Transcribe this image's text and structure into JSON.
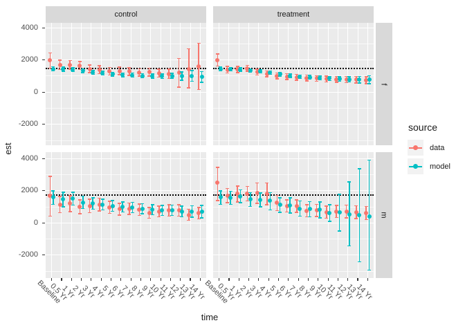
{
  "figure": {
    "colors": {
      "panel_bg": "#EBEBEB",
      "strip_bg": "#D9D9D9",
      "grid": "#FFFFFF",
      "axis_text": "#4D4D4D",
      "text": "#1A1A1A",
      "tick": "#333333",
      "legend_key_bg": "#F2F2F2",
      "ref_line": "#000000"
    }
  },
  "chart_data": {
    "type": "pointrange-errorbar",
    "xlabel": "time",
    "ylabel": "est",
    "col_facets": [
      "control",
      "treatment"
    ],
    "row_facets": [
      "f",
      "m"
    ],
    "x_categories": [
      "Baseline",
      "0.5 Yr",
      "1 Yr",
      "2 Yr",
      "3 Yr",
      "4 Yr",
      "5 Yr",
      "6 Yr",
      "7 Yr",
      "8 Yr",
      "9 Yr",
      "10 Yr",
      "11 Yr",
      "12 Yr",
      "13 Yr",
      "14 Yr"
    ],
    "y_ticks": [
      4000,
      2000,
      0,
      -2000
    ],
    "ylim": {
      "f": [
        -3300,
        4310
      ],
      "m": [
        -3430,
        4420
      ]
    },
    "grid": true,
    "reference_lines": {
      "f": 1470,
      "m": 1720
    },
    "legend": {
      "title": "source",
      "position": "right",
      "items": [
        {
          "label": "data",
          "color": "#F8766D"
        },
        {
          "label": "model",
          "color": "#00BFC4"
        }
      ]
    },
    "point_format": [
      "est",
      "lo",
      "hi"
    ],
    "panels": [
      {
        "col": "control",
        "row": "f",
        "data": [
          [
            2000,
            1500,
            2430
          ],
          [
            1690,
            1400,
            1990
          ],
          [
            1700,
            1440,
            1960
          ],
          [
            1650,
            1400,
            1900
          ],
          [
            1450,
            1210,
            1690
          ],
          [
            1400,
            1160,
            1640
          ],
          [
            1300,
            1070,
            1530
          ],
          [
            1320,
            1090,
            1550
          ],
          [
            1280,
            1050,
            1510
          ],
          [
            1220,
            990,
            1450
          ],
          [
            1250,
            1010,
            1490
          ],
          [
            1180,
            940,
            1420
          ],
          [
            1130,
            840,
            1420
          ],
          [
            1200,
            310,
            2090
          ],
          [
            1450,
            260,
            2700
          ],
          [
            1600,
            160,
            3050
          ]
        ],
        "model": [
          [
            1450,
            1330,
            1570
          ],
          [
            1430,
            1310,
            1550
          ],
          [
            1390,
            1270,
            1510
          ],
          [
            1340,
            1220,
            1460
          ],
          [
            1230,
            1110,
            1350
          ],
          [
            1180,
            1060,
            1300
          ],
          [
            1120,
            1000,
            1240
          ],
          [
            1080,
            960,
            1200
          ],
          [
            1060,
            930,
            1190
          ],
          [
            1020,
            890,
            1150
          ],
          [
            1000,
            870,
            1130
          ],
          [
            980,
            840,
            1120
          ],
          [
            1020,
            860,
            1180
          ],
          [
            1000,
            740,
            1260
          ],
          [
            1010,
            670,
            1350
          ],
          [
            950,
            620,
            1280
          ]
        ]
      },
      {
        "col": "treatment",
        "row": "f",
        "data": [
          [
            2000,
            1620,
            2370
          ],
          [
            1400,
            1200,
            1600
          ],
          [
            1410,
            1220,
            1600
          ],
          [
            1480,
            1290,
            1670
          ],
          [
            1250,
            1060,
            1440
          ],
          [
            1140,
            950,
            1330
          ],
          [
            1010,
            830,
            1190
          ],
          [
            970,
            790,
            1150
          ],
          [
            920,
            740,
            1100
          ],
          [
            880,
            700,
            1060
          ],
          [
            850,
            670,
            1030
          ],
          [
            820,
            640,
            1000
          ],
          [
            800,
            620,
            980
          ],
          [
            780,
            590,
            970
          ],
          [
            770,
            570,
            970
          ],
          [
            740,
            530,
            950
          ]
        ],
        "model": [
          [
            1440,
            1330,
            1550
          ],
          [
            1430,
            1320,
            1540
          ],
          [
            1400,
            1290,
            1510
          ],
          [
            1350,
            1240,
            1460
          ],
          [
            1300,
            1190,
            1410
          ],
          [
            1210,
            1100,
            1320
          ],
          [
            1110,
            1000,
            1220
          ],
          [
            1020,
            910,
            1130
          ],
          [
            960,
            850,
            1070
          ],
          [
            920,
            800,
            1040
          ],
          [
            880,
            760,
            1000
          ],
          [
            850,
            720,
            980
          ],
          [
            820,
            680,
            960
          ],
          [
            800,
            640,
            960
          ],
          [
            780,
            580,
            980
          ],
          [
            770,
            520,
            1020
          ]
        ]
      },
      {
        "col": "control",
        "row": "m",
        "data": [
          [
            1670,
            430,
            2900
          ],
          [
            1140,
            640,
            1640
          ],
          [
            1200,
            710,
            1690
          ],
          [
            990,
            560,
            1420
          ],
          [
            1060,
            640,
            1480
          ],
          [
            1140,
            740,
            1540
          ],
          [
            970,
            590,
            1350
          ],
          [
            850,
            490,
            1210
          ],
          [
            880,
            520,
            1240
          ],
          [
            820,
            470,
            1170
          ],
          [
            620,
            280,
            960
          ],
          [
            710,
            370,
            1050
          ],
          [
            780,
            430,
            1130
          ],
          [
            780,
            420,
            1140
          ],
          [
            500,
            160,
            840
          ],
          [
            600,
            240,
            960
          ]
        ],
        "model": [
          [
            1620,
            1150,
            2000
          ],
          [
            1460,
            990,
            1900
          ],
          [
            1500,
            1100,
            1900
          ],
          [
            1280,
            900,
            1660
          ],
          [
            1200,
            850,
            1550
          ],
          [
            1140,
            800,
            1480
          ],
          [
            1060,
            730,
            1390
          ],
          [
            990,
            670,
            1310
          ],
          [
            960,
            640,
            1280
          ],
          [
            880,
            570,
            1190
          ],
          [
            820,
            510,
            1130
          ],
          [
            780,
            470,
            1090
          ],
          [
            780,
            460,
            1100
          ],
          [
            710,
            380,
            1040
          ],
          [
            710,
            360,
            1060
          ],
          [
            700,
            320,
            1080
          ]
        ]
      },
      {
        "col": "treatment",
        "row": "m",
        "data": [
          [
            2500,
            1380,
            3450
          ],
          [
            1700,
            1250,
            2150
          ],
          [
            1800,
            1310,
            2290
          ],
          [
            1820,
            1370,
            2270
          ],
          [
            1850,
            1220,
            2480
          ],
          [
            1800,
            1120,
            2480
          ],
          [
            1240,
            760,
            1720
          ],
          [
            1060,
            680,
            1440
          ],
          [
            1040,
            650,
            1430
          ],
          [
            750,
            380,
            1120
          ],
          [
            780,
            400,
            1160
          ],
          [
            670,
            290,
            1050
          ],
          [
            710,
            330,
            1090
          ],
          [
            710,
            320,
            1100
          ],
          [
            670,
            270,
            1070
          ],
          [
            610,
            200,
            1020
          ]
        ],
        "model": [
          [
            1600,
            1150,
            2000
          ],
          [
            1580,
            1150,
            1960
          ],
          [
            1650,
            1250,
            2050
          ],
          [
            1460,
            1030,
            1890
          ],
          [
            1430,
            1010,
            1850
          ],
          [
            1380,
            800,
            1880
          ],
          [
            1110,
            650,
            1570
          ],
          [
            1090,
            620,
            1560
          ],
          [
            890,
            420,
            1360
          ],
          [
            850,
            370,
            1330
          ],
          [
            810,
            320,
            1300
          ],
          [
            610,
            100,
            1120
          ],
          [
            640,
            -500,
            1780
          ],
          [
            520,
            -1420,
            2550
          ],
          [
            470,
            -2410,
            3360
          ],
          [
            380,
            -2940,
            3900
          ]
        ]
      }
    ]
  }
}
